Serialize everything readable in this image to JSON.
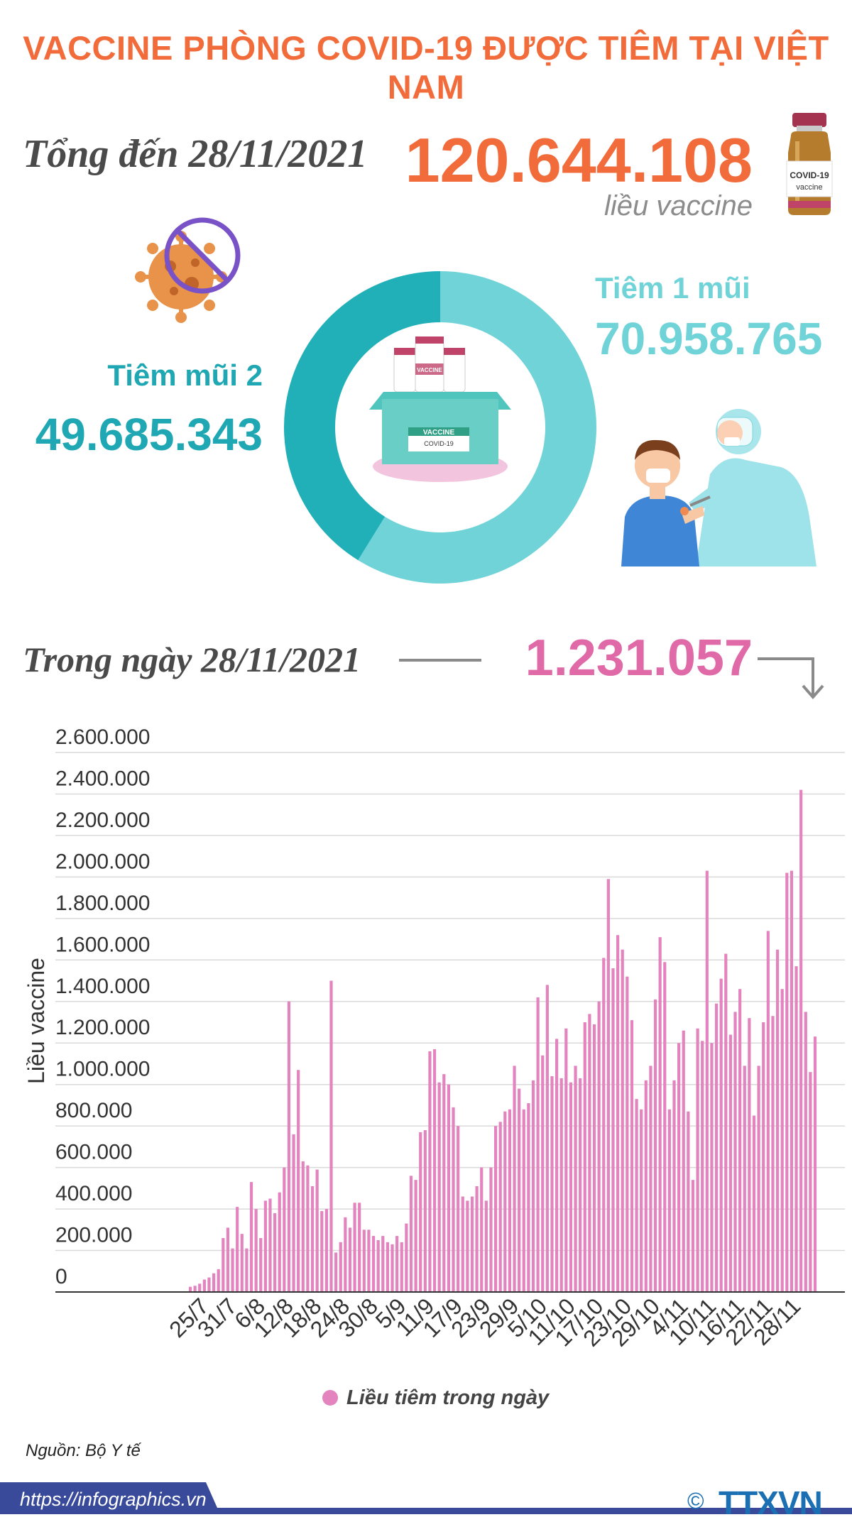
{
  "title": "VACCINE PHÒNG COVID-19 ĐƯỢC TIÊM TẠI VIỆT NAM",
  "total": {
    "label": "Tổng đến 28/11/2021",
    "value": "120.644.108",
    "unit": "liều vaccine"
  },
  "dose1": {
    "label": "Tiêm 1 mũi",
    "value": "70.958.765",
    "amount": 70958765
  },
  "dose2": {
    "label": "Tiêm mũi 2",
    "value": "49.685.343",
    "amount": 49685343
  },
  "daily": {
    "label": "Trong ngày 28/11/2021",
    "value": "1.231.057"
  },
  "vial_text": {
    "brand": "COVID-19",
    "sub": "vaccine"
  },
  "box_text": {
    "vial": "VACCINE",
    "box": "VACCINE",
    "box_sub": "COVID-19"
  },
  "colors": {
    "orange": "#f26b3a",
    "dose1": "#6fd3d8",
    "dose2": "#21afb8",
    "bar": "#e384bf",
    "grey_text": "#4a4a4a"
  },
  "icons": [
    "covid-virus-icon",
    "no-sign-icon",
    "vaccine-vial-icon",
    "vaccine-box-icon",
    "vaccination-illustration-icon",
    "arrow-down-icon"
  ],
  "chart_data": {
    "type": "bar",
    "ylabel": "Liều vaccine",
    "ylim": [
      0,
      2600000
    ],
    "yticks": [
      "0",
      "200.000",
      "400.000",
      "600.000",
      "800.000",
      "1.000.000",
      "1.200.000",
      "1.400.000",
      "1.600.000",
      "1.800.000",
      "2.000.000",
      "2.200.000",
      "2.400.000",
      "2.600.000"
    ],
    "xticks": [
      "25/7",
      "31/7",
      "6/8",
      "12/8",
      "18/8",
      "24/8",
      "30/8",
      "5/9",
      "11/9",
      "17/9",
      "23/9",
      "29/9",
      "5/10",
      "11/10",
      "17/10",
      "23/10",
      "29/10",
      "4/11",
      "10/11",
      "16/11",
      "22/11",
      "28/11"
    ],
    "legend": {
      "label": "Liều tiêm trong ngày",
      "position": "bottom"
    },
    "grid": true,
    "start_date": "2021-07-22",
    "end_date": "2021-11-28",
    "series": [
      {
        "name": "Liều tiêm trong ngày",
        "values": [
          25000,
          30000,
          40000,
          60000,
          70000,
          90000,
          110000,
          260000,
          310000,
          210000,
          410000,
          280000,
          210000,
          530000,
          400000,
          260000,
          440000,
          450000,
          380000,
          480000,
          600000,
          1400000,
          760000,
          1070000,
          630000,
          610000,
          510000,
          590000,
          390000,
          400000,
          1500000,
          190000,
          240000,
          360000,
          310000,
          430000,
          430000,
          300000,
          300000,
          270000,
          250000,
          270000,
          240000,
          230000,
          270000,
          240000,
          330000,
          560000,
          540000,
          770000,
          780000,
          1160000,
          1170000,
          1010000,
          1050000,
          1000000,
          890000,
          800000,
          460000,
          440000,
          460000,
          510000,
          600000,
          440000,
          600000,
          800000,
          820000,
          870000,
          880000,
          1090000,
          980000,
          880000,
          910000,
          1020000,
          1420000,
          1140000,
          1480000,
          1040000,
          1220000,
          1030000,
          1270000,
          1010000,
          1090000,
          1030000,
          1300000,
          1340000,
          1290000,
          1400000,
          1610000,
          1990000,
          1560000,
          1720000,
          1650000,
          1520000,
          1310000,
          930000,
          880000,
          1020000,
          1090000,
          1410000,
          1710000,
          1590000,
          880000,
          1020000,
          1200000,
          1260000,
          870000,
          540000,
          1270000,
          1210000,
          2030000,
          1200000,
          1390000,
          1510000,
          1630000,
          1240000,
          1350000,
          1460000,
          1090000,
          1320000,
          850000,
          1090000,
          1300000,
          1740000,
          1330000,
          1650000,
          1460000,
          2020000,
          2030000,
          1570000,
          2420000,
          1350000,
          1060000,
          1231057
        ]
      }
    ]
  }
}
